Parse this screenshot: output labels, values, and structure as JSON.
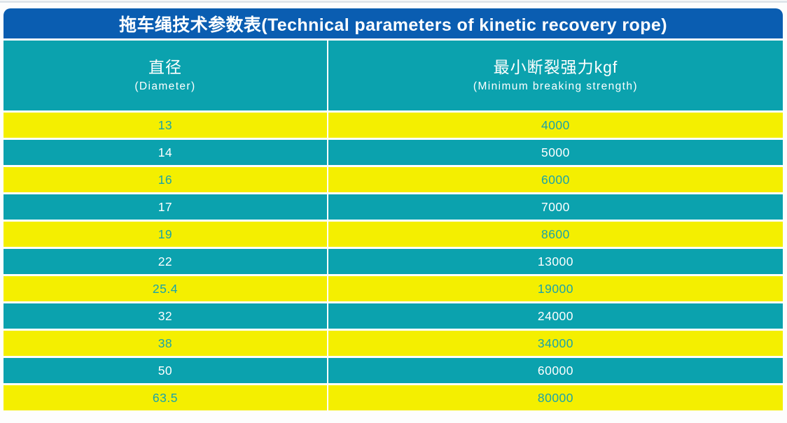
{
  "table": {
    "title": "拖车绳技术参数表(Technical parameters of kinetic recovery rope)",
    "columns": [
      {
        "zh": "直径",
        "en": "(Diameter)"
      },
      {
        "zh": "最小断裂强力kgf",
        "en": "(Minimum breaking strength)"
      }
    ],
    "rows": [
      {
        "diameter": "13",
        "strength": "4000"
      },
      {
        "diameter": "14",
        "strength": "5000"
      },
      {
        "diameter": "16",
        "strength": "6000"
      },
      {
        "diameter": "17",
        "strength": "7000"
      },
      {
        "diameter": "19",
        "strength": "8600"
      },
      {
        "diameter": "22",
        "strength": "13000"
      },
      {
        "diameter": "25.4",
        "strength": "19000"
      },
      {
        "diameter": "32",
        "strength": "24000"
      },
      {
        "diameter": "38",
        "strength": "34000"
      },
      {
        "diameter": "50",
        "strength": "60000"
      },
      {
        "diameter": "63.5",
        "strength": "80000"
      }
    ]
  },
  "colors": {
    "header_blue": "#0a5db1",
    "teal": "#0ba2ae",
    "yellow": "#f4ef00",
    "teal_text": "#19a3ab",
    "white_text": "#ffffff"
  },
  "chart_data": {
    "type": "table",
    "title": "拖车绳技术参数表(Technical parameters of kinetic recovery rope)",
    "columns": [
      "直径 (Diameter)",
      "最小断裂强力kgf (Minimum breaking strength)"
    ],
    "diameters": [
      13,
      14,
      16,
      17,
      19,
      22,
      25.4,
      32,
      38,
      50,
      63.5
    ],
    "min_breaking_strength_kgf": [
      4000,
      5000,
      6000,
      7000,
      8600,
      13000,
      19000,
      24000,
      34000,
      60000,
      80000
    ],
    "layout_hints": {
      "row_striping": [
        "yellow",
        "teal"
      ],
      "header_bg": "teal",
      "title_bar_bg": "blue"
    }
  }
}
